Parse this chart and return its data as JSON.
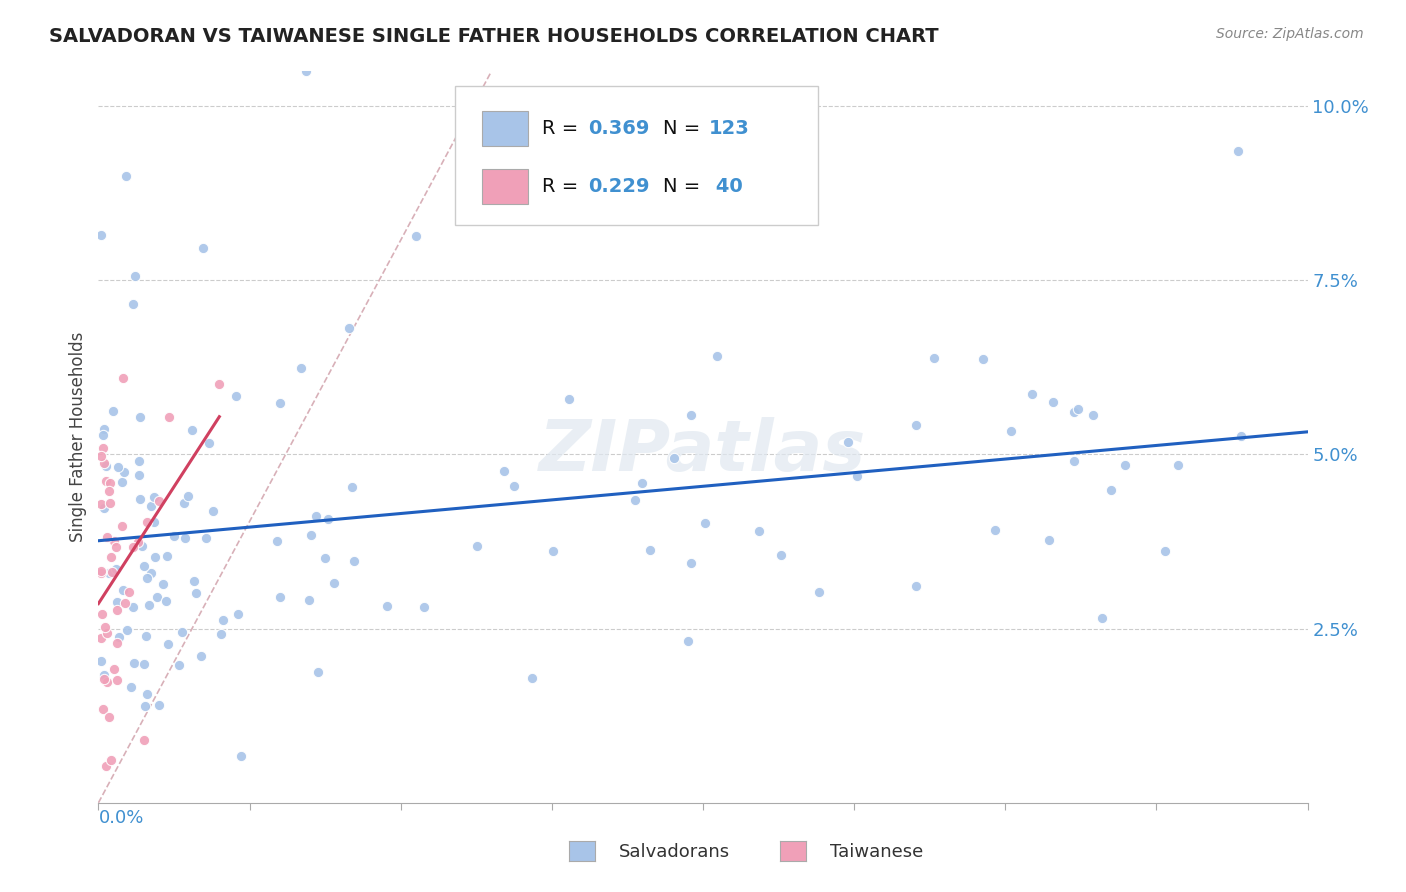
{
  "title": "SALVADORAN VS TAIWANESE SINGLE FATHER HOUSEHOLDS CORRELATION CHART",
  "source": "Source: ZipAtlas.com",
  "ylabel": "Single Father Households",
  "xlim": [
    0.0,
    0.4
  ],
  "ylim": [
    0.0,
    0.105
  ],
  "yticks": [
    0.025,
    0.05,
    0.075,
    0.1
  ],
  "ytick_labels": [
    "2.5%",
    "5.0%",
    "7.5%",
    "10.0%"
  ],
  "salvadoran_color": "#a8c4e8",
  "taiwanese_color": "#f0a0b8",
  "regression_color_salv": "#2060c0",
  "regression_color_taiw": "#d04060",
  "diag_color": "#d8b0b8",
  "tick_color": "#4090d0",
  "R_salv": 0.369,
  "N_salv": 123,
  "R_taiw": 0.229,
  "N_taiw": 40
}
